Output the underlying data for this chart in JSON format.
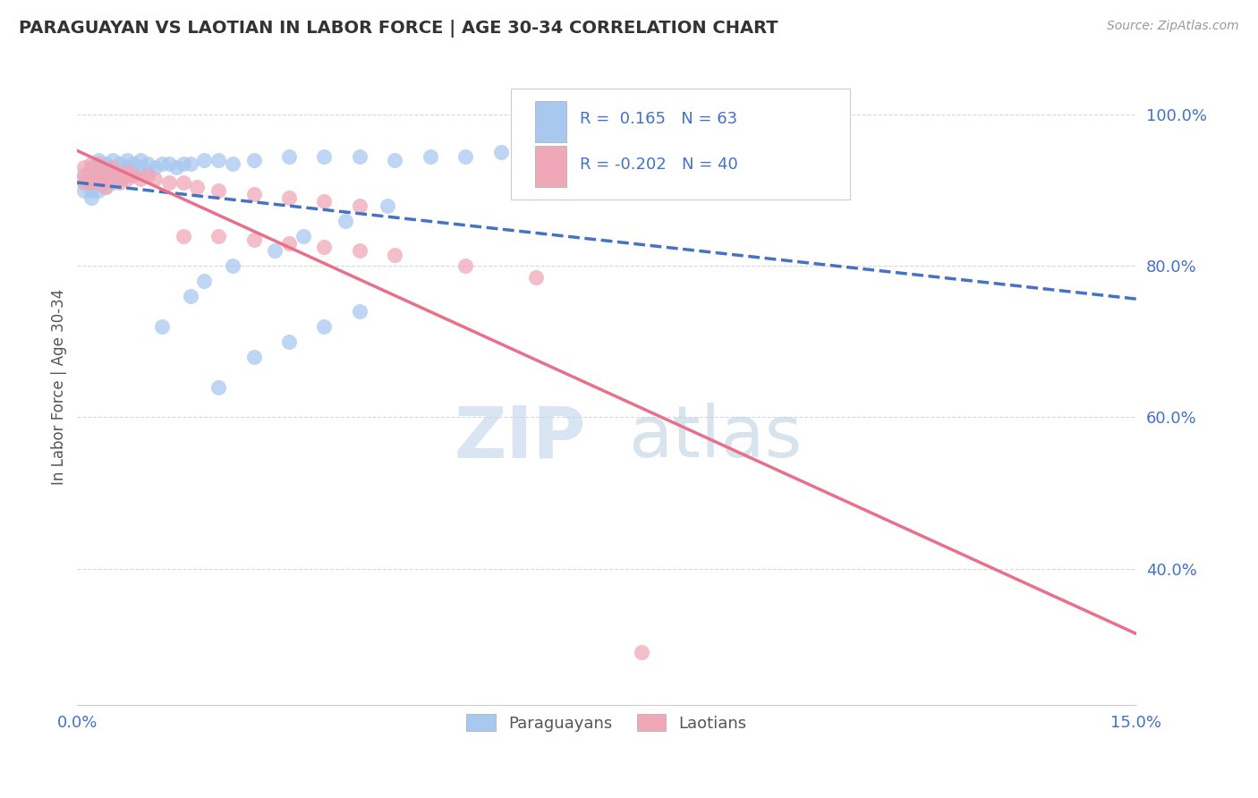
{
  "title": "PARAGUAYAN VS LAOTIAN IN LABOR FORCE | AGE 30-34 CORRELATION CHART",
  "source_text": "Source: ZipAtlas.com",
  "ylabel": "In Labor Force | Age 30-34",
  "xlim": [
    0.0,
    0.15
  ],
  "ylim": [
    0.22,
    1.06
  ],
  "r_paraguayan": 0.165,
  "n_paraguayan": 63,
  "r_laotian": -0.202,
  "n_laotian": 40,
  "color_paraguayan": "#a8c8f0",
  "color_laotian": "#f0a8b8",
  "line_color_paraguayan": "#4472c4",
  "line_color_laotian": "#e8708a",
  "tick_color": "#4472c4",
  "watermark_zip": "ZIP",
  "watermark_atlas": "atlas",
  "watermark_color_zip": "#c8d8ec",
  "watermark_color_atlas": "#b8c8e0",
  "paraguayan_x": [
    0.001,
    0.001,
    0.001,
    0.002,
    0.002,
    0.002,
    0.002,
    0.002,
    0.003,
    0.003,
    0.003,
    0.003,
    0.003,
    0.004,
    0.004,
    0.004,
    0.004,
    0.005,
    0.005,
    0.005,
    0.005,
    0.006,
    0.006,
    0.006,
    0.007,
    0.007,
    0.007,
    0.008,
    0.008,
    0.009,
    0.009,
    0.01,
    0.01,
    0.011,
    0.012,
    0.013,
    0.014,
    0.015,
    0.016,
    0.018,
    0.02,
    0.022,
    0.025,
    0.03,
    0.035,
    0.04,
    0.045,
    0.05,
    0.055,
    0.06,
    0.02,
    0.025,
    0.03,
    0.035,
    0.04,
    0.012,
    0.016,
    0.018,
    0.022,
    0.028,
    0.032,
    0.038,
    0.044
  ],
  "paraguayan_y": [
    0.92,
    0.91,
    0.9,
    0.93,
    0.92,
    0.91,
    0.9,
    0.89,
    0.94,
    0.93,
    0.92,
    0.91,
    0.9,
    0.935,
    0.925,
    0.915,
    0.905,
    0.94,
    0.93,
    0.92,
    0.91,
    0.935,
    0.925,
    0.915,
    0.94,
    0.93,
    0.92,
    0.935,
    0.925,
    0.94,
    0.93,
    0.935,
    0.925,
    0.93,
    0.935,
    0.935,
    0.93,
    0.935,
    0.935,
    0.94,
    0.94,
    0.935,
    0.94,
    0.945,
    0.945,
    0.945,
    0.94,
    0.945,
    0.945,
    0.95,
    0.64,
    0.68,
    0.7,
    0.72,
    0.74,
    0.72,
    0.76,
    0.78,
    0.8,
    0.82,
    0.84,
    0.86,
    0.88
  ],
  "laotian_x": [
    0.001,
    0.001,
    0.001,
    0.002,
    0.002,
    0.002,
    0.003,
    0.003,
    0.003,
    0.004,
    0.004,
    0.004,
    0.005,
    0.005,
    0.006,
    0.006,
    0.007,
    0.007,
    0.008,
    0.009,
    0.01,
    0.011,
    0.013,
    0.015,
    0.017,
    0.02,
    0.025,
    0.03,
    0.035,
    0.04,
    0.015,
    0.02,
    0.025,
    0.03,
    0.035,
    0.04,
    0.045,
    0.055,
    0.065,
    0.08
  ],
  "laotian_y": [
    0.93,
    0.92,
    0.91,
    0.935,
    0.92,
    0.91,
    0.935,
    0.92,
    0.91,
    0.925,
    0.915,
    0.905,
    0.93,
    0.92,
    0.92,
    0.91,
    0.925,
    0.915,
    0.92,
    0.915,
    0.92,
    0.915,
    0.91,
    0.91,
    0.905,
    0.9,
    0.895,
    0.89,
    0.885,
    0.88,
    0.84,
    0.84,
    0.835,
    0.83,
    0.825,
    0.82,
    0.815,
    0.8,
    0.785,
    0.29
  ],
  "bg_color": "#ffffff",
  "plot_bg_color": "#ffffff",
  "grid_color": "#d8d8d8"
}
